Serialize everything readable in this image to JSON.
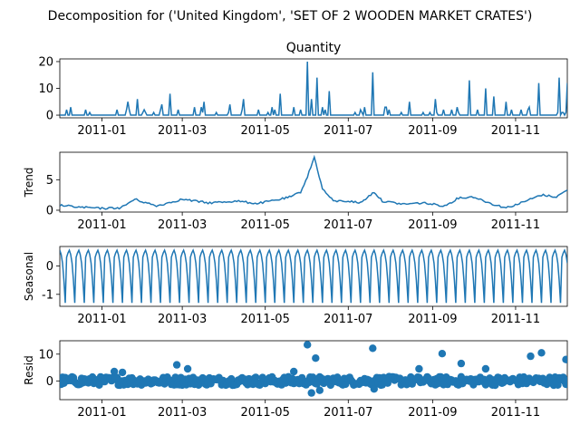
{
  "suptitle": "Decomposition for ('United Kingdom', 'SET OF 2 WOODEN MARKET CRATES')",
  "x_ticks": [
    "2011-01",
    "2011-03",
    "2011-05",
    "2011-07",
    "2011-09",
    "2011-11"
  ],
  "x_range": [
    "2010-12-01",
    "2011-12-09"
  ],
  "line_color": "#1f77b4",
  "chart_data": [
    {
      "type": "line",
      "title": "Quantity",
      "ylabel": "",
      "ylim": [
        -1,
        21
      ],
      "yticks": [
        "0",
        "10",
        "20"
      ],
      "x": [
        "2010-12-01",
        "2010-12-06",
        "2010-12-20",
        "2011-01-07",
        "2011-01-12",
        "2011-01-20",
        "2011-01-27",
        "2011-02-08",
        "2011-02-14",
        "2011-02-20",
        "2011-02-27",
        "2011-03-10",
        "2011-03-17",
        "2011-03-28",
        "2011-04-05",
        "2011-04-15",
        "2011-04-25",
        "2011-05-03",
        "2011-05-12",
        "2011-05-20",
        "2011-05-27",
        "2011-06-01",
        "2011-06-04",
        "2011-06-08",
        "2011-06-12",
        "2011-06-17",
        "2011-06-24",
        "2011-07-01",
        "2011-07-10",
        "2011-07-19",
        "2011-07-28",
        "2011-08-06",
        "2011-08-15",
        "2011-08-25",
        "2011-09-03",
        "2011-09-12",
        "2011-09-20",
        "2011-09-28",
        "2011-10-04",
        "2011-10-10",
        "2011-10-16",
        "2011-10-25",
        "2011-11-03",
        "2011-11-10",
        "2011-11-18",
        "2011-11-26",
        "2011-12-03",
        "2011-12-09"
      ],
      "values": [
        0,
        2,
        2,
        0,
        2,
        5,
        6,
        1,
        4,
        8,
        0,
        3,
        5,
        0,
        4,
        6,
        0,
        1,
        8,
        0,
        2,
        20,
        6,
        14,
        3,
        9,
        0,
        0,
        2,
        16,
        3,
        0,
        5,
        1,
        6,
        0,
        1,
        13,
        2,
        10,
        7,
        5,
        0,
        2,
        12,
        0,
        14,
        12
      ]
    },
    {
      "type": "line",
      "title": "",
      "ylabel": "Trend",
      "ylim": [
        -0.3,
        9.5
      ],
      "yticks": [
        "0",
        "5"
      ],
      "x": [
        "2010-12-01",
        "2010-12-15",
        "2011-01-01",
        "2011-01-15",
        "2011-01-25",
        "2011-02-10",
        "2011-03-01",
        "2011-03-20",
        "2011-04-10",
        "2011-04-25",
        "2011-05-10",
        "2011-05-20",
        "2011-05-27",
        "2011-06-01",
        "2011-06-06",
        "2011-06-12",
        "2011-06-20",
        "2011-07-01",
        "2011-07-10",
        "2011-07-20",
        "2011-07-26",
        "2011-08-10",
        "2011-08-25",
        "2011-09-10",
        "2011-09-20",
        "2011-10-01",
        "2011-10-15",
        "2011-10-25",
        "2011-11-05",
        "2011-11-20",
        "2011-12-01",
        "2011-12-09"
      ],
      "values": [
        0.8,
        0.5,
        0.3,
        0.4,
        1.8,
        0.7,
        1.8,
        1.2,
        1.5,
        1.1,
        1.7,
        2.2,
        3.0,
        5.5,
        8.7,
        3.5,
        1.5,
        1.5,
        1.2,
        3.0,
        1.5,
        1.0,
        1.2,
        0.7,
        2.0,
        2.2,
        1.0,
        0.4,
        1.2,
        2.5,
        2.2,
        3.3
      ]
    },
    {
      "type": "line",
      "title": "",
      "ylabel": "Seasonal",
      "ylim": [
        -1.42,
        0.68
      ],
      "yticks": [
        "0",
        "-1"
      ],
      "period_days": 7,
      "weekly_pattern": [
        0.55,
        0.4,
        0.1,
        -0.5,
        -1.3,
        0.3,
        0.45
      ]
    },
    {
      "type": "scatter",
      "title": "",
      "ylabel": "Resid",
      "ylim": [
        -7,
        15
      ],
      "yticks": [
        "0",
        "10"
      ],
      "outliers": [
        {
          "x": "2011-02-25",
          "y": 6
        },
        {
          "x": "2011-03-05",
          "y": 4.5
        },
        {
          "x": "2011-05-22",
          "y": 3.5
        },
        {
          "x": "2011-06-01",
          "y": 13.5
        },
        {
          "x": "2011-06-07",
          "y": 8.5
        },
        {
          "x": "2011-06-04",
          "y": -4.5
        },
        {
          "x": "2011-06-10",
          "y": -3.5
        },
        {
          "x": "2011-07-19",
          "y": 12.2
        },
        {
          "x": "2011-07-20",
          "y": -3.0
        },
        {
          "x": "2011-08-22",
          "y": 4.5
        },
        {
          "x": "2011-09-08",
          "y": 10.2
        },
        {
          "x": "2011-09-22",
          "y": 6.5
        },
        {
          "x": "2011-10-10",
          "y": 4.5
        },
        {
          "x": "2011-11-12",
          "y": 9.2
        },
        {
          "x": "2011-11-20",
          "y": 10.5
        },
        {
          "x": "2011-12-08",
          "y": 8.0
        },
        {
          "x": "2011-01-10",
          "y": 3.5
        },
        {
          "x": "2011-01-16",
          "y": 3.2
        }
      ]
    }
  ]
}
